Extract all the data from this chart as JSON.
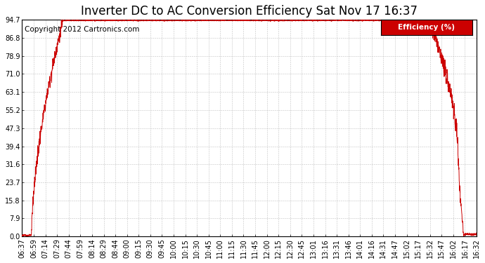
{
  "title": "Inverter DC to AC Conversion Efficiency Sat Nov 17 16:37",
  "copyright": "Copyright 2012 Cartronics.com",
  "legend_label": "Efficiency (%)",
  "legend_bg": "#cc0000",
  "legend_text_color": "#ffffff",
  "line_color": "#cc0000",
  "background_color": "#ffffff",
  "grid_color": "#aaaaaa",
  "yticks": [
    0.0,
    7.9,
    15.8,
    23.7,
    31.6,
    39.4,
    47.3,
    55.2,
    63.1,
    71.0,
    78.9,
    86.8,
    94.7
  ],
  "xtick_labels": [
    "06:37",
    "06:59",
    "07:14",
    "07:29",
    "07:44",
    "07:59",
    "08:14",
    "08:29",
    "08:44",
    "09:00",
    "09:15",
    "09:30",
    "09:45",
    "10:00",
    "10:15",
    "10:30",
    "10:45",
    "11:00",
    "11:15",
    "11:30",
    "11:45",
    "12:00",
    "12:15",
    "12:30",
    "12:45",
    "13:01",
    "13:16",
    "13:31",
    "13:46",
    "14:01",
    "14:16",
    "14:31",
    "14:47",
    "15:02",
    "15:17",
    "15:32",
    "15:47",
    "16:02",
    "16:17",
    "16:32"
  ],
  "ylim": [
    0.0,
    94.7
  ],
  "xlim": [
    0,
    39
  ],
  "title_fontsize": 12,
  "axis_fontsize": 7,
  "copyright_fontsize": 7.5
}
